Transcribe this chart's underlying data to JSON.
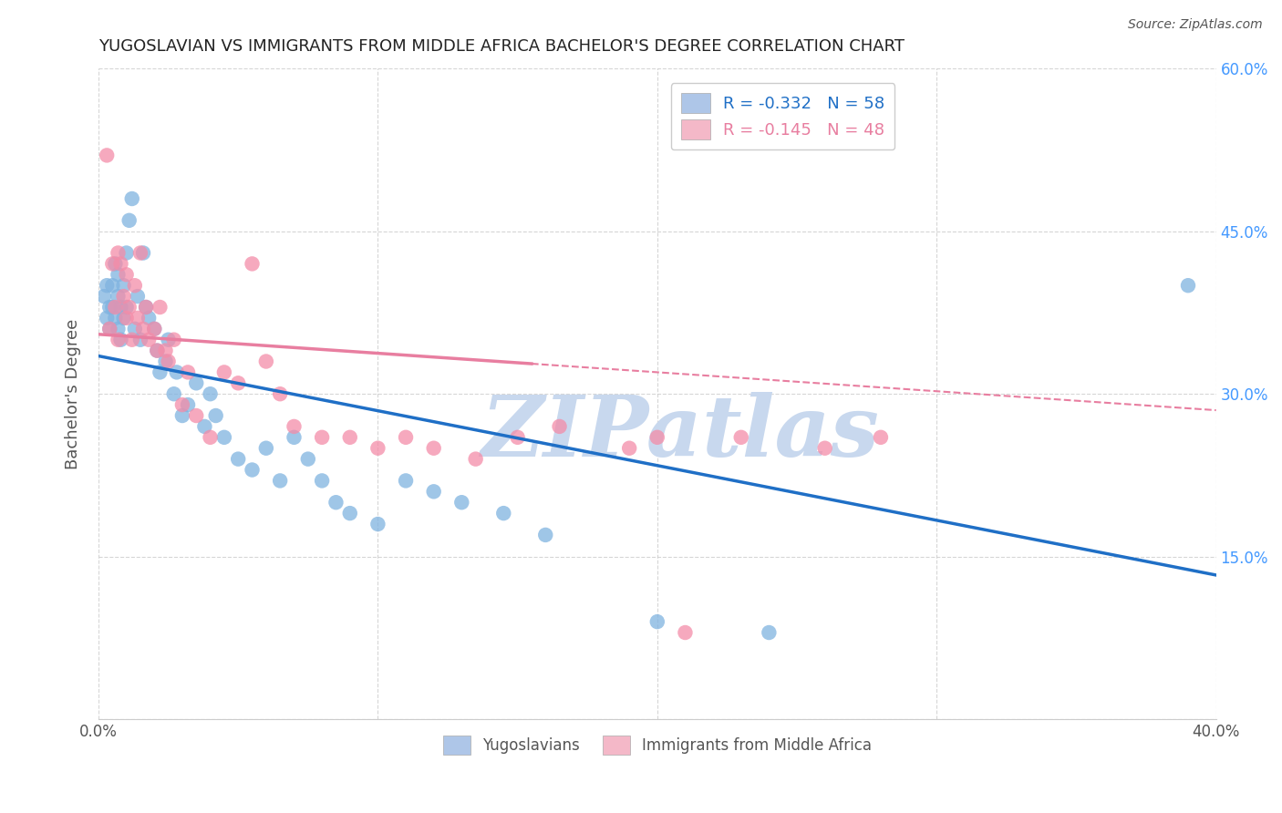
{
  "title": "YUGOSLAVIAN VS IMMIGRANTS FROM MIDDLE AFRICA BACHELOR'S DEGREE CORRELATION CHART",
  "source": "Source: ZipAtlas.com",
  "ylabel": "Bachelor's Degree",
  "x_min": 0.0,
  "x_max": 0.4,
  "y_min": 0.0,
  "y_max": 0.6,
  "x_ticks": [
    0.0,
    0.1,
    0.2,
    0.3,
    0.4
  ],
  "x_tick_labels": [
    "0.0%",
    "",
    "",
    "",
    "40.0%"
  ],
  "y_ticks": [
    0.0,
    0.15,
    0.3,
    0.45,
    0.6
  ],
  "y_tick_labels": [
    "",
    "15.0%",
    "30.0%",
    "45.0%",
    "60.0%"
  ],
  "legend1_label": "R = -0.332   N = 58",
  "legend2_label": "R = -0.145   N = 48",
  "legend_color1": "#aec6e8",
  "legend_color2": "#f4b8c8",
  "dot_color1": "#7fb3e0",
  "dot_color2": "#f48ca8",
  "line_color1": "#1f6fc6",
  "line_color2": "#e87ea0",
  "watermark": "ZIPatlas",
  "watermark_color": "#c8d8ee",
  "background_color": "#ffffff",
  "grid_color": "#cccccc",
  "yug_line_x0": 0.0,
  "yug_line_y0": 0.335,
  "yug_line_x1": 0.4,
  "yug_line_y1": 0.133,
  "ma_line_x0": 0.0,
  "ma_line_y0": 0.355,
  "ma_line_x1": 0.4,
  "ma_line_y1": 0.285,
  "ma_line_solid_end": 0.155,
  "yugoslavian_x": [
    0.002,
    0.003,
    0.003,
    0.004,
    0.004,
    0.005,
    0.005,
    0.006,
    0.006,
    0.007,
    0.007,
    0.007,
    0.008,
    0.008,
    0.009,
    0.009,
    0.01,
    0.01,
    0.011,
    0.012,
    0.013,
    0.014,
    0.015,
    0.016,
    0.017,
    0.018,
    0.02,
    0.021,
    0.022,
    0.024,
    0.025,
    0.027,
    0.028,
    0.03,
    0.032,
    0.035,
    0.038,
    0.04,
    0.042,
    0.045,
    0.05,
    0.055,
    0.06,
    0.065,
    0.07,
    0.075,
    0.08,
    0.085,
    0.09,
    0.1,
    0.11,
    0.12,
    0.13,
    0.145,
    0.16,
    0.2,
    0.24,
    0.39
  ],
  "yugoslavian_y": [
    0.39,
    0.37,
    0.4,
    0.38,
    0.36,
    0.4,
    0.38,
    0.42,
    0.37,
    0.41,
    0.39,
    0.36,
    0.35,
    0.38,
    0.37,
    0.4,
    0.43,
    0.38,
    0.46,
    0.48,
    0.36,
    0.39,
    0.35,
    0.43,
    0.38,
    0.37,
    0.36,
    0.34,
    0.32,
    0.33,
    0.35,
    0.3,
    0.32,
    0.28,
    0.29,
    0.31,
    0.27,
    0.3,
    0.28,
    0.26,
    0.24,
    0.23,
    0.25,
    0.22,
    0.26,
    0.24,
    0.22,
    0.2,
    0.19,
    0.18,
    0.22,
    0.21,
    0.2,
    0.19,
    0.17,
    0.09,
    0.08,
    0.4
  ],
  "middleafrica_x": [
    0.003,
    0.004,
    0.005,
    0.006,
    0.007,
    0.007,
    0.008,
    0.009,
    0.01,
    0.01,
    0.011,
    0.012,
    0.013,
    0.014,
    0.015,
    0.016,
    0.017,
    0.018,
    0.02,
    0.021,
    0.022,
    0.024,
    0.025,
    0.027,
    0.03,
    0.032,
    0.035,
    0.04,
    0.045,
    0.05,
    0.055,
    0.06,
    0.065,
    0.07,
    0.08,
    0.09,
    0.1,
    0.11,
    0.12,
    0.135,
    0.15,
    0.165,
    0.19,
    0.2,
    0.21,
    0.23,
    0.26,
    0.28
  ],
  "middleafrica_y": [
    0.52,
    0.36,
    0.42,
    0.38,
    0.43,
    0.35,
    0.42,
    0.39,
    0.37,
    0.41,
    0.38,
    0.35,
    0.4,
    0.37,
    0.43,
    0.36,
    0.38,
    0.35,
    0.36,
    0.34,
    0.38,
    0.34,
    0.33,
    0.35,
    0.29,
    0.32,
    0.28,
    0.26,
    0.32,
    0.31,
    0.42,
    0.33,
    0.3,
    0.27,
    0.26,
    0.26,
    0.25,
    0.26,
    0.25,
    0.24,
    0.26,
    0.27,
    0.25,
    0.26,
    0.08,
    0.26,
    0.25,
    0.26
  ]
}
